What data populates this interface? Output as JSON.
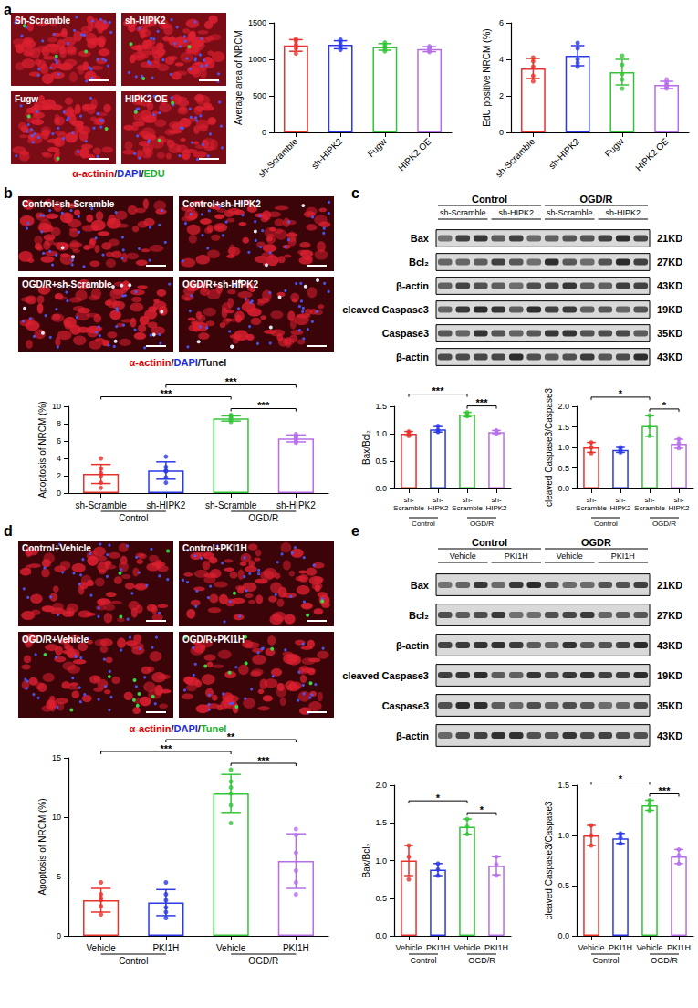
{
  "panel_letters": [
    "a",
    "b",
    "c",
    "d",
    "e"
  ],
  "images": [
    {
      "labels": [
        "Sh-Scramble",
        "sh-HIPK2",
        "Fugw",
        "HIPK2 OE"
      ],
      "stain": "α-actinin/DAPI/EDU",
      "stain_colors": [
        "#e00000",
        "#1a2ee0",
        "#20b030"
      ]
    },
    {
      "labels": [
        "Control+sh-Scramble",
        "Control+sh-HIPK2",
        "OGD/R+sh-Scramble",
        "OGD/R+sh-HIPK2"
      ],
      "stain": "α-actinin/DAPI/Tunel",
      "stain_colors": [
        "#e00000",
        "#1a2ee0",
        "#222222"
      ]
    },
    {
      "labels": [
        "Control+Vehicle",
        "Control+PKI1H",
        "OGD/R+Vehicle",
        "OGD/R+PKI1H"
      ],
      "stain": "α-actinin/DAPI/Tunel",
      "stain_colors": [
        "#e00000",
        "#1a2ee0",
        "#20b030"
      ]
    }
  ],
  "blots": [
    {
      "lanes": 12,
      "groups": [
        {
          "label": "Control",
          "from": 0,
          "to": 5
        },
        {
          "label": "OGD/R",
          "from": 6,
          "to": 11
        }
      ],
      "subgroups": [
        {
          "label": "sh-Scramble",
          "from": 0,
          "to": 2
        },
        {
          "label": "sh-HIPK2",
          "from": 3,
          "to": 5
        },
        {
          "label": "sh-Scramble",
          "from": 6,
          "to": 8
        },
        {
          "label": "sh-HIPK2",
          "from": 9,
          "to": 11
        }
      ],
      "rows": [
        {
          "label": "Bax",
          "size": "21KD"
        },
        {
          "label": "Bcl₂",
          "size": "27KD"
        },
        {
          "label": "β-actin",
          "size": "43KD"
        },
        {
          "label": "cleaved Caspase3",
          "size": "19KD"
        },
        {
          "label": "Caspase3",
          "size": "35KD"
        },
        {
          "label": "β-actin",
          "size": "43KD"
        }
      ]
    },
    {
      "lanes": 12,
      "groups": [
        {
          "label": "Control",
          "from": 0,
          "to": 5
        },
        {
          "label": "OGDR",
          "from": 6,
          "to": 11
        }
      ],
      "subgroups": [
        {
          "label": "Vehicle",
          "from": 0,
          "to": 2
        },
        {
          "label": "PKI1H",
          "from": 3,
          "to": 5
        },
        {
          "label": "Vehicle",
          "from": 6,
          "to": 8
        },
        {
          "label": "PKI1H",
          "from": 9,
          "to": 11
        }
      ],
      "rows": [
        {
          "label": "Bax",
          "size": "21KD"
        },
        {
          "label": "Bcl₂",
          "size": "27KD"
        },
        {
          "label": "β-actin",
          "size": "43KD"
        },
        {
          "label": "cleaved Caspase3",
          "size": "19KD"
        },
        {
          "label": "Caspase3",
          "size": "35KD"
        },
        {
          "label": "β-actin",
          "size": "43KD"
        }
      ]
    }
  ],
  "chart_data": [
    {
      "type": "bar",
      "ylabel": "Average area of NRCM",
      "categories": [
        "sh-Scramble",
        "sh-HIPK2",
        "Fugw",
        "HIPK2 OE"
      ],
      "values": [
        1190,
        1200,
        1170,
        1140
      ],
      "errors": [
        80,
        55,
        45,
        35
      ],
      "points": [
        [
          1080,
          1150,
          1200,
          1250,
          1280
        ],
        [
          1130,
          1170,
          1200,
          1240,
          1270
        ],
        [
          1110,
          1140,
          1170,
          1200,
          1230
        ],
        [
          1100,
          1120,
          1140,
          1160,
          1180
        ]
      ],
      "colors": [
        "#e8322c",
        "#2b39e6",
        "#34c438",
        "#b66ee8"
      ],
      "ylim": [
        0,
        1500
      ],
      "yticks": [
        0,
        500,
        1000,
        1500
      ]
    },
    {
      "type": "bar",
      "ylabel": "EdU positive NRCM (%)",
      "categories": [
        "sh-Scramble",
        "sh-HIPK2",
        "Fugw",
        "HIPK2 OE"
      ],
      "values": [
        3.5,
        4.2,
        3.3,
        2.6
      ],
      "errors": [
        0.55,
        0.55,
        0.7,
        0.2
      ],
      "points": [
        [
          2.8,
          3.1,
          3.6,
          3.9,
          4.1
        ],
        [
          3.6,
          3.8,
          4.0,
          4.6,
          4.9
        ],
        [
          2.4,
          2.9,
          3.2,
          3.7,
          4.2
        ],
        [
          2.4,
          2.5,
          2.6,
          2.7,
          2.9
        ]
      ],
      "colors": [
        "#e8322c",
        "#2b39e6",
        "#34c438",
        "#b66ee8"
      ],
      "ylim": [
        0,
        6
      ],
      "yticks": [
        0,
        2,
        4,
        6
      ]
    },
    {
      "type": "bar",
      "ylabel": "Apoptosis of NRCM (%)",
      "categories": [
        "sh-Scramble",
        "sh-HIPK2",
        "sh-Scramble",
        "sh-HIPK2"
      ],
      "groups": [
        {
          "label": "Control",
          "from": 0,
          "to": 1
        },
        {
          "label": "OGD/R",
          "from": 2,
          "to": 3
        }
      ],
      "values": [
        2.2,
        2.6,
        8.6,
        6.3
      ],
      "errors": [
        1.1,
        1.0,
        0.3,
        0.4
      ],
      "points": [
        [
          0.6,
          1.2,
          2.0,
          2.3,
          2.8,
          4.0
        ],
        [
          1.2,
          1.8,
          2.5,
          2.6,
          3.0,
          4.2
        ],
        [
          8.2,
          8.4,
          8.6,
          8.7,
          8.9,
          9.0
        ],
        [
          5.8,
          6.0,
          6.3,
          6.4,
          6.6,
          6.8
        ]
      ],
      "colors": [
        "#e8322c",
        "#2b39e6",
        "#34c438",
        "#b66ee8"
      ],
      "annotations": [
        {
          "from": 0,
          "to": 2,
          "text": "***"
        },
        {
          "from": 2,
          "to": 3,
          "text": "***"
        },
        {
          "from": 1,
          "to": 3,
          "text": "***"
        }
      ],
      "ylim": [
        0,
        10
      ],
      "yticks": [
        0,
        2,
        4,
        6,
        8,
        10
      ]
    },
    {
      "type": "bar",
      "ylabel": "Bax/Bcl₂",
      "categories": [
        "sh-Scramble",
        "sh-HIPK2",
        "sh-Scramble",
        "sh-HIPK2"
      ],
      "groups": [
        {
          "label": "Control",
          "from": 0,
          "to": 1
        },
        {
          "label": "OGD/R",
          "from": 2,
          "to": 3
        }
      ],
      "values": [
        1.0,
        1.08,
        1.35,
        1.03
      ],
      "errors": [
        0.04,
        0.05,
        0.04,
        0.03
      ],
      "points": [
        [
          0.96,
          1.0,
          1.04
        ],
        [
          1.03,
          1.07,
          1.14
        ],
        [
          1.32,
          1.35,
          1.39
        ],
        [
          1.0,
          1.03,
          1.06
        ]
      ],
      "colors": [
        "#e8322c",
        "#2b39e6",
        "#34c438",
        "#b66ee8"
      ],
      "annotations": [
        {
          "from": 0,
          "to": 2,
          "text": "***"
        },
        {
          "from": 2,
          "to": 3,
          "text": "***"
        }
      ],
      "ylim": [
        0,
        1.5
      ],
      "yticks": [
        {
          "value": 0,
          "label": "0.0"
        },
        0.5,
        {
          "value": 1,
          "label": "1.0"
        },
        1.5
      ]
    },
    {
      "type": "bar",
      "ylabel": "cleaved Caspase3/Caspase3",
      "categories": [
        "sh-Scramble",
        "sh-HIPK2",
        "sh-Scramble",
        "sh-HIPK2"
      ],
      "groups": [
        {
          "label": "Control",
          "from": 0,
          "to": 1
        },
        {
          "label": "OGD/R",
          "from": 2,
          "to": 3
        }
      ],
      "values": [
        1.0,
        0.94,
        1.52,
        1.09
      ],
      "errors": [
        0.12,
        0.06,
        0.25,
        0.11
      ],
      "points": [
        [
          0.86,
          1.0,
          1.12
        ],
        [
          0.88,
          0.95,
          1.0
        ],
        [
          1.28,
          1.5,
          1.78
        ],
        [
          0.98,
          1.1,
          1.2
        ]
      ],
      "colors": [
        "#e8322c",
        "#2b39e6",
        "#34c438",
        "#b66ee8"
      ],
      "annotations": [
        {
          "from": 0,
          "to": 2,
          "text": "*"
        },
        {
          "from": 2,
          "to": 3,
          "text": "*"
        }
      ],
      "ylim": [
        0,
        2
      ],
      "yticks": [
        {
          "value": 0,
          "label": "0.0"
        },
        0.5,
        {
          "value": 1,
          "label": "1.0"
        },
        1.5,
        {
          "value": 2,
          "label": "2.0"
        }
      ]
    },
    {
      "type": "bar",
      "ylabel": "Apoptosis of NRCM (%)",
      "categories": [
        "Vehicle",
        "PKI1H",
        "Vehicle",
        "PKI1H"
      ],
      "groups": [
        {
          "label": "Control",
          "from": 0,
          "to": 1
        },
        {
          "label": "OGD/R",
          "from": 2,
          "to": 3
        }
      ],
      "values": [
        3.0,
        2.8,
        12.0,
        6.3
      ],
      "errors": [
        1.0,
        1.1,
        1.6,
        2.3
      ],
      "points": [
        [
          1.8,
          2.5,
          3.0,
          3.2,
          3.5,
          4.5
        ],
        [
          1.5,
          2.0,
          2.4,
          3.0,
          3.5,
          4.5
        ],
        [
          9.5,
          11,
          12,
          12.5,
          13,
          14
        ],
        [
          3.5,
          4.5,
          5.5,
          7,
          8.5,
          9
        ]
      ],
      "colors": [
        "#e8322c",
        "#2b39e6",
        "#34c438",
        "#b66ee8"
      ],
      "annotations": [
        {
          "from": 0,
          "to": 2,
          "text": "***"
        },
        {
          "from": 2,
          "to": 3,
          "text": "***"
        },
        {
          "from": 1,
          "to": 3,
          "text": "**"
        }
      ],
      "ylim": [
        0,
        15
      ],
      "yticks": [
        0,
        5,
        10,
        15
      ]
    },
    {
      "type": "bar",
      "ylabel": "Bax/Bcl₂",
      "categories": [
        "Vehicle",
        "PKI1H",
        "Vehicle",
        "PKI1H"
      ],
      "groups": [
        {
          "label": "Control",
          "from": 0,
          "to": 1
        },
        {
          "label": "OGD/R",
          "from": 2,
          "to": 3
        }
      ],
      "values": [
        1.0,
        0.88,
        1.45,
        0.93
      ],
      "errors": [
        0.2,
        0.08,
        0.1,
        0.12
      ],
      "points": [
        [
          0.75,
          1.05,
          1.2
        ],
        [
          0.8,
          0.88,
          0.96
        ],
        [
          1.35,
          1.45,
          1.55
        ],
        [
          0.8,
          0.95,
          1.05
        ]
      ],
      "colors": [
        "#e8322c",
        "#2b39e6",
        "#34c438",
        "#b66ee8"
      ],
      "annotations": [
        {
          "from": 0,
          "to": 2,
          "text": "*"
        },
        {
          "from": 2,
          "to": 3,
          "text": "*"
        }
      ],
      "ylim": [
        0,
        2
      ],
      "yticks": [
        {
          "value": 0,
          "label": "0.0"
        },
        0.5,
        {
          "value": 1,
          "label": "1.0"
        },
        1.5,
        {
          "value": 2,
          "label": "2.0"
        }
      ]
    },
    {
      "type": "bar",
      "ylabel": "cleaved Caspase3/Caspase3",
      "categories": [
        "Vehicle",
        "PKI1H",
        "Vehicle",
        "PKI1H"
      ],
      "groups": [
        {
          "label": "Control",
          "from": 0,
          "to": 1
        },
        {
          "label": "OGD/R",
          "from": 2,
          "to": 3
        }
      ],
      "values": [
        1.0,
        0.97,
        1.3,
        0.79
      ],
      "errors": [
        0.1,
        0.05,
        0.05,
        0.07
      ],
      "points": [
        [
          0.9,
          1.0,
          1.1
        ],
        [
          0.92,
          0.98,
          1.02
        ],
        [
          1.25,
          1.3,
          1.35
        ],
        [
          0.72,
          0.8,
          0.86
        ]
      ],
      "colors": [
        "#e8322c",
        "#2b39e6",
        "#34c438",
        "#b66ee8"
      ],
      "annotations": [
        {
          "from": 0,
          "to": 2,
          "text": "*"
        },
        {
          "from": 2,
          "to": 3,
          "text": "***"
        }
      ],
      "ylim": [
        0,
        1.5
      ],
      "yticks": [
        {
          "value": 0,
          "label": "0.0"
        },
        0.5,
        {
          "value": 1,
          "label": "1.0"
        },
        1.5
      ]
    }
  ]
}
